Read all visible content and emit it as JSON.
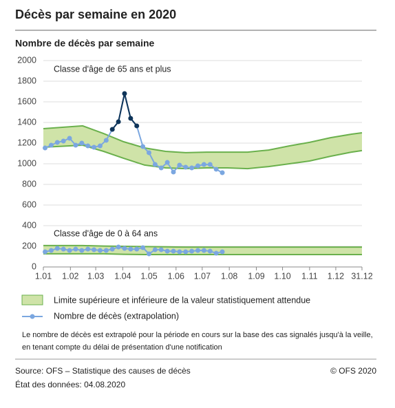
{
  "page_title": "Décès par semaine en 2020",
  "note": [
    "Le nombre de décès est extrapolé pour la période en cours sur la base des cas signalés jusqu'à la veille,",
    "en tenant compte du délai de présentation d'une notification"
  ],
  "source": "Source: OFS – Statistique des causes de décès",
  "data_state": "État des données: 04.08.2020",
  "copyright": "© OFS 2020",
  "chart_data": {
    "type": "line",
    "title": "Nombre de décès par semaine",
    "annotations": [
      "Classe d'âge de 65 ans et plus",
      "Classe d'âge de 0 à 64 ans"
    ],
    "xlim": [
      1,
      366
    ],
    "xticks": [
      {
        "value": 1,
        "label": "1.01"
      },
      {
        "value": 32,
        "label": "1.02"
      },
      {
        "value": 61,
        "label": "1.03"
      },
      {
        "value": 92,
        "label": "1.04"
      },
      {
        "value": 122,
        "label": "1.05"
      },
      {
        "value": 153,
        "label": "1.06"
      },
      {
        "value": 183,
        "label": "1.07"
      },
      {
        "value": 214,
        "label": "1.08"
      },
      {
        "value": 245,
        "label": "1.09"
      },
      {
        "value": 275,
        "label": "1.10"
      },
      {
        "value": 306,
        "label": "1.11"
      },
      {
        "value": 336,
        "label": "1.12"
      },
      {
        "value": 366,
        "label": "31.12"
      }
    ],
    "ylim": [
      0,
      2000
    ],
    "yticks": [
      0,
      200,
      400,
      600,
      800,
      1000,
      1200,
      1400,
      1600,
      1800,
      2000
    ],
    "grid": true,
    "series": [
      {
        "name": "Limite supérieure et inférieure de la valeur statistiquement attendue",
        "type": "band",
        "color": "#cfe3a8",
        "stroke": "#6ab04c",
        "x": [
          1,
          46,
          70,
          93,
          117,
          141,
          164,
          188,
          212,
          235,
          259,
          283,
          306,
          330,
          354,
          366
        ],
        "upper": [
          1340,
          1367,
          1293,
          1213,
          1153,
          1120,
          1107,
          1113,
          1113,
          1113,
          1133,
          1173,
          1207,
          1253,
          1287,
          1300
        ],
        "lower": [
          1160,
          1180,
          1120,
          1053,
          987,
          960,
          953,
          960,
          960,
          953,
          973,
          1000,
          1027,
          1073,
          1113,
          1127
        ]
      },
      {
        "type": "band",
        "color": "#cfe3a8",
        "stroke": "#6ab04c",
        "x": [
          1,
          46,
          70,
          93,
          117,
          141,
          164,
          188,
          212,
          235,
          259,
          283,
          306,
          330,
          354,
          366
        ],
        "upper": [
          207,
          207,
          203,
          200,
          197,
          195,
          193,
          193,
          193,
          193,
          193,
          193,
          193,
          193,
          193,
          193
        ],
        "lower": [
          127,
          127,
          127,
          123,
          120,
          120,
          120,
          120,
          120,
          120,
          120,
          120,
          120,
          120,
          120,
          120
        ]
      },
      {
        "name": "Nombre de décès (extrapolation)",
        "type": "line",
        "color": "#7ba7e0",
        "x": [
          3,
          10,
          17,
          24,
          31,
          38,
          45,
          52,
          59,
          66,
          73,
          80,
          87,
          94,
          101,
          108,
          115,
          122,
          129,
          136,
          143,
          150,
          157,
          164,
          171,
          178,
          185,
          192,
          199,
          206
        ],
        "values": [
          1153,
          1180,
          1207,
          1220,
          1247,
          1180,
          1200,
          1173,
          1160,
          1173,
          1227,
          1333,
          1407,
          1680,
          1440,
          1367,
          1167,
          1107,
          993,
          960,
          1013,
          920,
          987,
          967,
          960,
          980,
          993,
          993,
          947,
          913
        ],
        "point_colors": [
          "#7ba7e0",
          "#7ba7e0",
          "#7ba7e0",
          "#7ba7e0",
          "#7ba7e0",
          "#7ba7e0",
          "#7ba7e0",
          "#7ba7e0",
          "#7ba7e0",
          "#7ba7e0",
          "#7ba7e0",
          "#0e3459",
          "#0e3459",
          "#0e3459",
          "#0e3459",
          "#0e3459",
          "#7ba7e0",
          "#7ba7e0",
          "#7ba7e0",
          "#7ba7e0",
          "#7ba7e0",
          "#7ba7e0",
          "#7ba7e0",
          "#7ba7e0",
          "#7ba7e0",
          "#7ba7e0",
          "#7ba7e0",
          "#7ba7e0",
          "#7ba7e0",
          "#7ba7e0"
        ]
      },
      {
        "type": "line",
        "color": "#7ba7e0",
        "x": [
          3,
          10,
          17,
          24,
          31,
          38,
          45,
          52,
          59,
          66,
          73,
          80,
          87,
          94,
          101,
          108,
          115,
          122,
          129,
          136,
          143,
          150,
          157,
          164,
          171,
          178,
          185,
          192,
          199,
          206
        ],
        "values": [
          147,
          160,
          180,
          173,
          160,
          173,
          160,
          173,
          167,
          160,
          160,
          173,
          193,
          180,
          173,
          173,
          187,
          127,
          167,
          167,
          153,
          153,
          147,
          147,
          153,
          160,
          160,
          153,
          133,
          147
        ]
      }
    ]
  }
}
